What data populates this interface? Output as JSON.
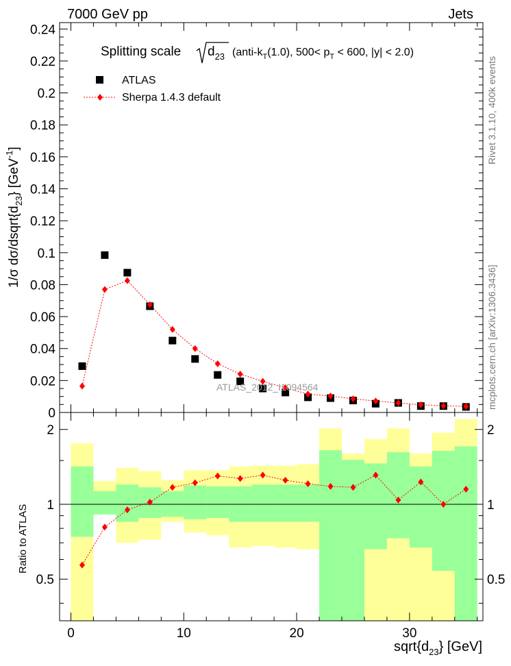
{
  "header": {
    "energy_label": "7000 GeV pp",
    "category_label": "Jets",
    "watermark": "ATLAS_2012_I1094564"
  },
  "side_labels": {
    "rivet": "Rivet 3.1.10,  400k events",
    "mcplots": "mcplots.cern.ch [arXiv:1306.3436]"
  },
  "main_title": {
    "prefix": "Splitting scale",
    "sqrt_arg": "d",
    "sqrt_sub": "23",
    "p1": "(anti-k",
    "p1sub": "T",
    "p2": "(1.0), 500< p",
    "p2sub": "T",
    "p3": " < 600, |y| < 2.0)"
  },
  "legend": {
    "data_label": "ATLAS",
    "mc_label": "Sherpa 1.4.3 default"
  },
  "axes": {
    "ylabel_main": {
      "a": "1/σ dσ/dsqrt{d",
      "sub": "23",
      "b": "} [GeV",
      "sup": "-1",
      "c": "]"
    },
    "ylabel_ratio": "Ratio to ATLAS",
    "xlabel": {
      "a": "sqrt{d",
      "sub": "23",
      "b": "} [GeV]"
    }
  },
  "colors": {
    "mc": "#ff0000",
    "data": "#000000",
    "band_inner": "#99ff99",
    "band_outer": "#ffff99"
  },
  "chart_data": [
    {
      "type": "scatter",
      "panel": "main",
      "xlim": [
        -1,
        36.5
      ],
      "ylim": [
        0,
        0.244
      ],
      "y_ticks": [
        0,
        0.02,
        0.04,
        0.06,
        0.08,
        0.1,
        0.12,
        0.14,
        0.16,
        0.18,
        0.2,
        0.22,
        0.24
      ],
      "y_tick_labels": [
        "0",
        "0.02",
        "0.04",
        "0.06",
        "0.08",
        "0.1",
        "0.12",
        "0.14",
        "0.16",
        "0.18",
        "0.2",
        "0.22",
        "0.24"
      ],
      "bin_edges": [
        0,
        2,
        4,
        6,
        8,
        10,
        12,
        14,
        16,
        18,
        20,
        22,
        24,
        26,
        28,
        30,
        32,
        34,
        36
      ],
      "x": [
        1,
        3,
        5,
        7,
        9,
        11,
        13,
        15,
        17,
        19,
        21,
        23,
        25,
        27,
        29,
        31,
        33,
        35
      ],
      "series": [
        {
          "name": "ATLAS",
          "values": [
            0.029,
            0.0985,
            0.0875,
            0.0665,
            0.045,
            0.0335,
            0.0235,
            0.0195,
            0.015,
            0.0125,
            0.0095,
            0.009,
            0.0075,
            0.0055,
            0.006,
            0.004,
            0.004,
            0.0035
          ]
        },
        {
          "name": "Sherpa 1.4.3 default",
          "values": [
            0.0165,
            0.077,
            0.0825,
            0.0675,
            0.052,
            0.04,
            0.0305,
            0.024,
            0.0195,
            0.0155,
            0.0115,
            0.0103,
            0.0085,
            0.0072,
            0.006,
            0.0048,
            0.0042,
            0.0038
          ]
        }
      ]
    },
    {
      "type": "scatter",
      "panel": "ratio",
      "xlim": [
        -1,
        36.5
      ],
      "ylim": [
        0.34,
        2.34
      ],
      "y_ticks": [
        0.5,
        1,
        2
      ],
      "y_tick_labels": [
        "0.5",
        "1",
        "2"
      ],
      "x_ticks": [
        0,
        10,
        20,
        30
      ],
      "x_tick_labels": [
        "0",
        "10",
        "20",
        "30"
      ],
      "reference_line": 1,
      "bin_edges": [
        0,
        2,
        4,
        6,
        8,
        10,
        12,
        14,
        16,
        18,
        20,
        22,
        24,
        26,
        28,
        30,
        32,
        34,
        36
      ],
      "x": [
        1,
        3,
        5,
        7,
        9,
        11,
        13,
        15,
        17,
        19,
        21,
        23,
        25,
        27,
        29,
        31,
        33,
        35
      ],
      "inner_band": {
        "low": [
          0.74,
          0.91,
          0.85,
          0.88,
          0.89,
          0.87,
          0.88,
          0.85,
          0.85,
          0.85,
          0.85,
          0.33,
          0.33,
          0.66,
          0.73,
          0.67,
          0.54,
          0.33
        ],
        "high": [
          1.42,
          1.13,
          1.2,
          1.17,
          1.13,
          1.19,
          1.18,
          1.18,
          1.2,
          1.2,
          1.2,
          1.65,
          1.51,
          1.46,
          1.62,
          1.42,
          1.64,
          1.71
        ]
      },
      "outer_band": {
        "low": [
          0.33,
          0.92,
          0.7,
          0.72,
          0.85,
          0.77,
          0.75,
          0.67,
          0.68,
          0.67,
          0.66,
          0.33,
          0.33,
          0.33,
          0.33,
          0.33,
          0.33,
          0.33
        ],
        "high": [
          1.76,
          1.24,
          1.4,
          1.36,
          1.25,
          1.37,
          1.37,
          1.42,
          1.43,
          1.43,
          1.45,
          2.02,
          1.6,
          1.83,
          2.02,
          1.6,
          1.94,
          2.2
        ]
      },
      "series": [
        {
          "name": "Sherpa 1.4.3 default / ATLAS",
          "values": [
            0.57,
            0.81,
            0.95,
            1.02,
            1.17,
            1.22,
            1.3,
            1.27,
            1.31,
            1.25,
            1.21,
            1.18,
            1.17,
            1.31,
            1.04,
            1.23,
            1.0,
            1.15
          ]
        }
      ]
    }
  ]
}
